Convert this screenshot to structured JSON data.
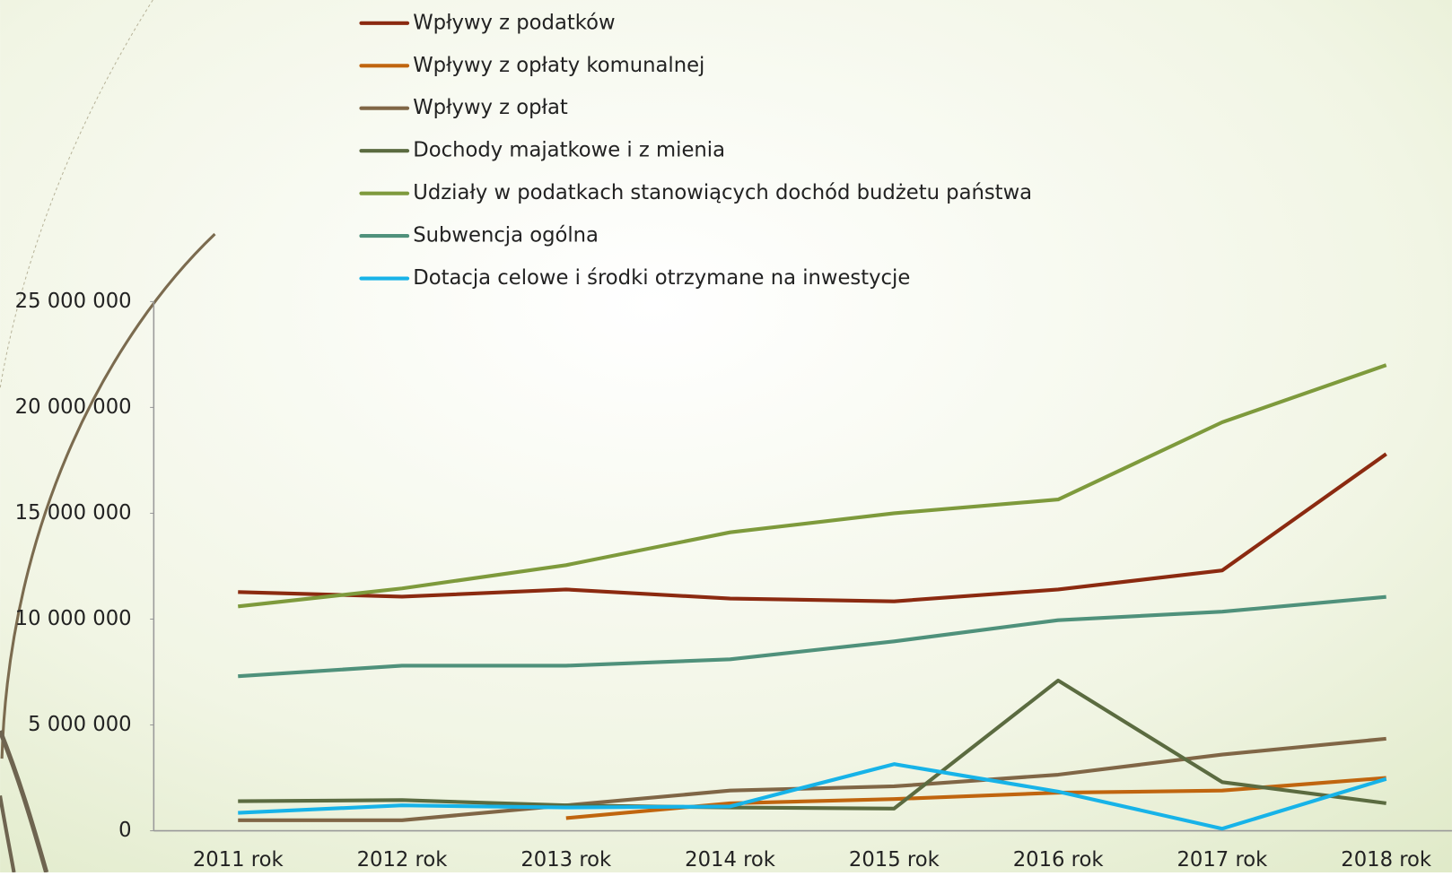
{
  "chart_data": {
    "type": "line",
    "categories": [
      "2011 rok",
      "2012 rok",
      "2013 rok",
      "2014 rok",
      "2015 rok",
      "2016 rok",
      "2017 rok",
      "2018 rok"
    ],
    "series": [
      {
        "name": "Wpływy z podatków",
        "color": "#8b2a10",
        "values": [
          11280000,
          11060000,
          11400000,
          10970000,
          10840000,
          11400000,
          12300000,
          17800000
        ]
      },
      {
        "name": "Wpływy z opłaty komunalnej",
        "color": "#c0650f",
        "values": [
          null,
          null,
          600000,
          1300000,
          1500000,
          1800000,
          1900000,
          2500000
        ]
      },
      {
        "name": "Wpływy z opłat",
        "color": "#806646",
        "values": [
          500000,
          500000,
          1200000,
          1900000,
          2100000,
          2650000,
          3600000,
          4350000
        ]
      },
      {
        "name": "Dochody majatkowe i z mienia",
        "color": "#5b6b40",
        "values": [
          1400000,
          1450000,
          1200000,
          1100000,
          1050000,
          7100000,
          2300000,
          1300000
        ]
      },
      {
        "name": "Udziały w podatkach stanowiących dochód budżetu państwa",
        "color": "#7e9a3c",
        "values": [
          10600000,
          11450000,
          12550000,
          14100000,
          15000000,
          15650000,
          19300000,
          22000000
        ]
      },
      {
        "name": "Subwencja ogólna",
        "color": "#4f917b",
        "values": [
          7300000,
          7800000,
          7800000,
          8100000,
          8950000,
          9950000,
          10350000,
          11050000
        ]
      },
      {
        "name": "Dotacja celowe i środki otrzymane na inwestycje",
        "color": "#17b3e8",
        "values": [
          850000,
          1200000,
          1100000,
          1150000,
          3150000,
          1850000,
          100000,
          2450000
        ]
      }
    ],
    "ylim": [
      0,
      25000000
    ],
    "yticks": [
      {
        "value": 0,
        "label": "0"
      },
      {
        "value": 5000000,
        "label": "5 000 000"
      },
      {
        "value": 10000000,
        "label": "10 000 000"
      },
      {
        "value": 15000000,
        "label": "15 000 000"
      },
      {
        "value": 20000000,
        "label": "20 000 000"
      },
      {
        "value": 25000000,
        "label": "25 000 000"
      }
    ],
    "grid": false,
    "legend": "top"
  }
}
